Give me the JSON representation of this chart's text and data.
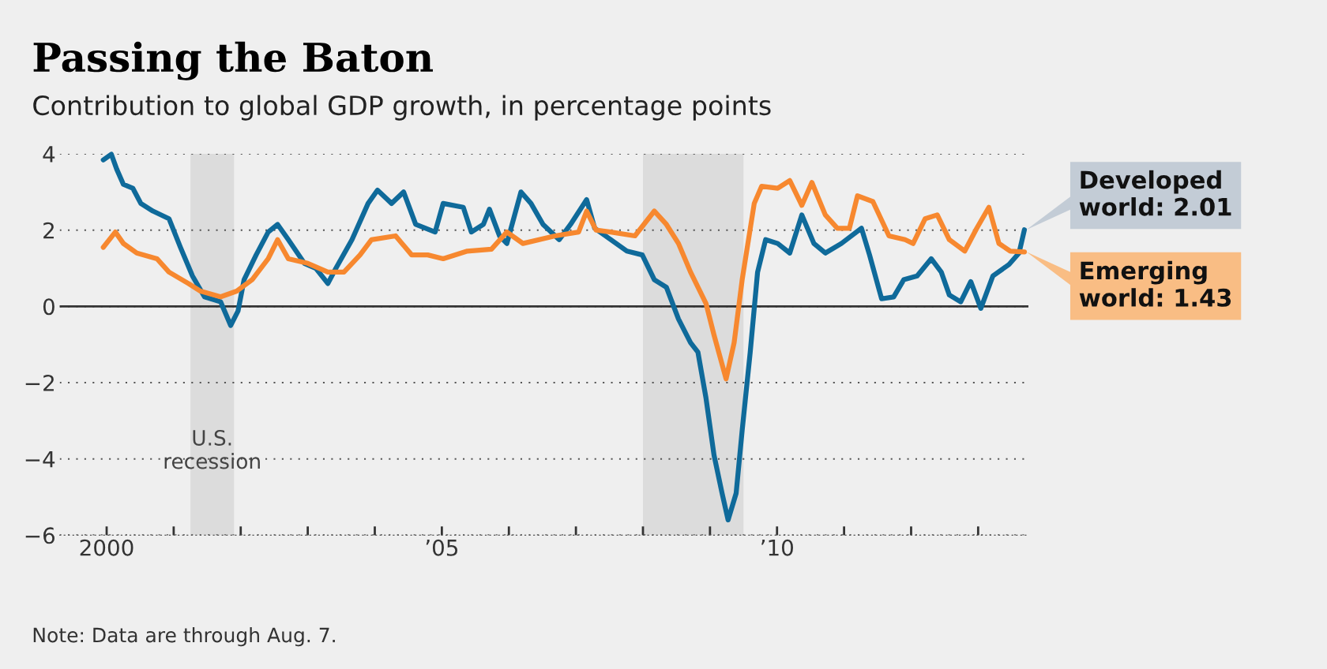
{
  "chart_data": {
    "type": "line",
    "title": "Passing the Baton",
    "subtitle": "Contribution to global GDP growth, in percentage points",
    "series": [
      {
        "color": "#0f6a9a",
        "x": [
          1999.95,
          2000.07,
          2000.15,
          2000.25,
          2000.39,
          2000.51,
          2000.69,
          2000.93,
          2001.1,
          2001.28,
          2001.46,
          2001.7,
          2001.85,
          2001.96,
          2002.05,
          2002.23,
          2002.41,
          2002.55,
          2002.71,
          2002.95,
          2003.12,
          2003.3,
          2003.42,
          2003.66,
          2003.9,
          2004.04,
          2004.25,
          2004.43,
          2004.61,
          2004.9,
          2005.02,
          2005.32,
          2005.44,
          2005.62,
          2005.71,
          2005.86,
          2005.97,
          2006.18,
          2006.33,
          2006.51,
          2006.75,
          2006.92,
          2007.16,
          2007.28,
          2007.52,
          2007.76,
          2007.99,
          2008.17,
          2008.35,
          2008.53,
          2008.71,
          2008.82,
          2008.94,
          2009.06,
          2009.18,
          2009.27,
          2009.39,
          2009.48,
          2009.6,
          2009.71,
          2009.83,
          2010.01,
          2010.19,
          2010.37,
          2010.55,
          2010.72,
          2010.96,
          2011.26,
          2011.38,
          2011.56,
          2011.74,
          2011.89,
          2012.09,
          2012.3,
          2012.45,
          2012.57,
          2012.74,
          2012.89,
          2013.04,
          2013.22,
          2013.46,
          2013.61,
          2013.69
        ],
        "values": [
          3.84,
          3.99,
          3.6,
          3.2,
          3.1,
          2.7,
          2.5,
          2.3,
          1.55,
          0.8,
          0.25,
          0.12,
          -0.5,
          -0.12,
          0.7,
          1.35,
          1.95,
          2.15,
          1.75,
          1.13,
          1.0,
          0.6,
          1.0,
          1.75,
          2.7,
          3.05,
          2.7,
          3.0,
          2.15,
          1.95,
          2.7,
          2.6,
          1.95,
          2.15,
          2.55,
          1.85,
          1.65,
          3.0,
          2.7,
          2.15,
          1.75,
          2.15,
          2.8,
          2.05,
          1.75,
          1.45,
          1.35,
          0.7,
          0.5,
          -0.33,
          -0.95,
          -1.2,
          -2.4,
          -3.9,
          -4.9,
          -5.6,
          -4.9,
          -3.25,
          -1.2,
          0.9,
          1.75,
          1.65,
          1.4,
          2.4,
          1.65,
          1.4,
          1.65,
          2.05,
          1.35,
          0.2,
          0.25,
          0.7,
          0.8,
          1.25,
          0.9,
          0.3,
          0.12,
          0.65,
          -0.05,
          0.8,
          1.1,
          1.4,
          2.01
        ]
      },
      {
        "color": "#f7882f",
        "x": [
          1999.95,
          2000.13,
          2000.25,
          2000.45,
          2000.75,
          2000.93,
          2001.22,
          2001.4,
          2001.7,
          2001.94,
          2002.17,
          2002.41,
          2002.55,
          2002.71,
          2003.0,
          2003.3,
          2003.54,
          2003.78,
          2003.95,
          2004.31,
          2004.55,
          2004.79,
          2005.02,
          2005.38,
          2005.74,
          2005.97,
          2006.21,
          2006.69,
          2007.04,
          2007.16,
          2007.3,
          2007.52,
          2007.88,
          2008.17,
          2008.35,
          2008.53,
          2008.71,
          2008.94,
          2009.06,
          2009.24,
          2009.36,
          2009.48,
          2009.66,
          2009.77,
          2010.01,
          2010.19,
          2010.37,
          2010.52,
          2010.72,
          2010.9,
          2011.08,
          2011.2,
          2011.43,
          2011.67,
          2011.91,
          2012.03,
          2012.21,
          2012.39,
          2012.57,
          2012.8,
          2012.98,
          2013.16,
          2013.31,
          2013.48,
          2013.69
        ],
        "values": [
          1.55,
          1.95,
          1.65,
          1.4,
          1.25,
          0.9,
          0.6,
          0.4,
          0.25,
          0.4,
          0.7,
          1.25,
          1.75,
          1.25,
          1.13,
          0.9,
          0.9,
          1.35,
          1.75,
          1.85,
          1.35,
          1.35,
          1.25,
          1.45,
          1.5,
          1.95,
          1.65,
          1.85,
          1.95,
          2.5,
          2.0,
          1.95,
          1.85,
          2.5,
          2.15,
          1.65,
          0.9,
          0.08,
          -0.75,
          -1.9,
          -0.95,
          0.7,
          2.7,
          3.15,
          3.1,
          3.3,
          2.65,
          3.25,
          2.4,
          2.05,
          2.05,
          2.9,
          2.75,
          1.85,
          1.75,
          1.65,
          2.3,
          2.4,
          1.75,
          1.45,
          2.05,
          2.6,
          1.65,
          1.45,
          1.43
        ]
      }
    ],
    "xlim": [
      1999.3,
      2013.75
    ],
    "ylim": [
      -6,
      4
    ],
    "xticks": [
      {
        "value": 2000,
        "label": "2000"
      },
      {
        "value": 2001,
        "label": null
      },
      {
        "value": 2002,
        "label": null
      },
      {
        "value": 2003,
        "label": null
      },
      {
        "value": 2004,
        "label": null
      },
      {
        "value": 2005,
        "label": "’05"
      },
      {
        "value": 2006,
        "label": null
      },
      {
        "value": 2007,
        "label": null
      },
      {
        "value": 2008,
        "label": null
      },
      {
        "value": 2009,
        "label": null
      },
      {
        "value": 2010,
        "label": "’10"
      },
      {
        "value": 2011,
        "label": null
      },
      {
        "value": 2012,
        "label": null
      },
      {
        "value": 2013,
        "label": null
      }
    ],
    "yticks": [
      {
        "value": -6,
        "label": "−6"
      },
      {
        "value": -4,
        "label": "−4"
      },
      {
        "value": -2,
        "label": "−2"
      },
      0,
      2,
      4
    ],
    "grid": "y",
    "line_style": "solid",
    "marker": "none",
    "ref_lines": [
      {
        "axis": "y",
        "value": 0,
        "color": "#333333",
        "line_style": "solid"
      }
    ],
    "bands": [
      {
        "axis": "x",
        "from": 2001.25,
        "to": 2001.9,
        "label": "U.S.\nrecession",
        "color": "#dcdcdc"
      },
      {
        "axis": "x",
        "from": 2008.0,
        "to": 2009.5,
        "color": "#dcdcdc"
      }
    ],
    "annotations": [
      {
        "text": "Developed\nworld: 2.01",
        "x": 2013.69,
        "y": 2.01
      },
      {
        "text": "Emerging\nworld: 1.43",
        "x": 2013.69,
        "y": 1.43
      },
      "Note: Data are through Aug. 7."
    ]
  }
}
